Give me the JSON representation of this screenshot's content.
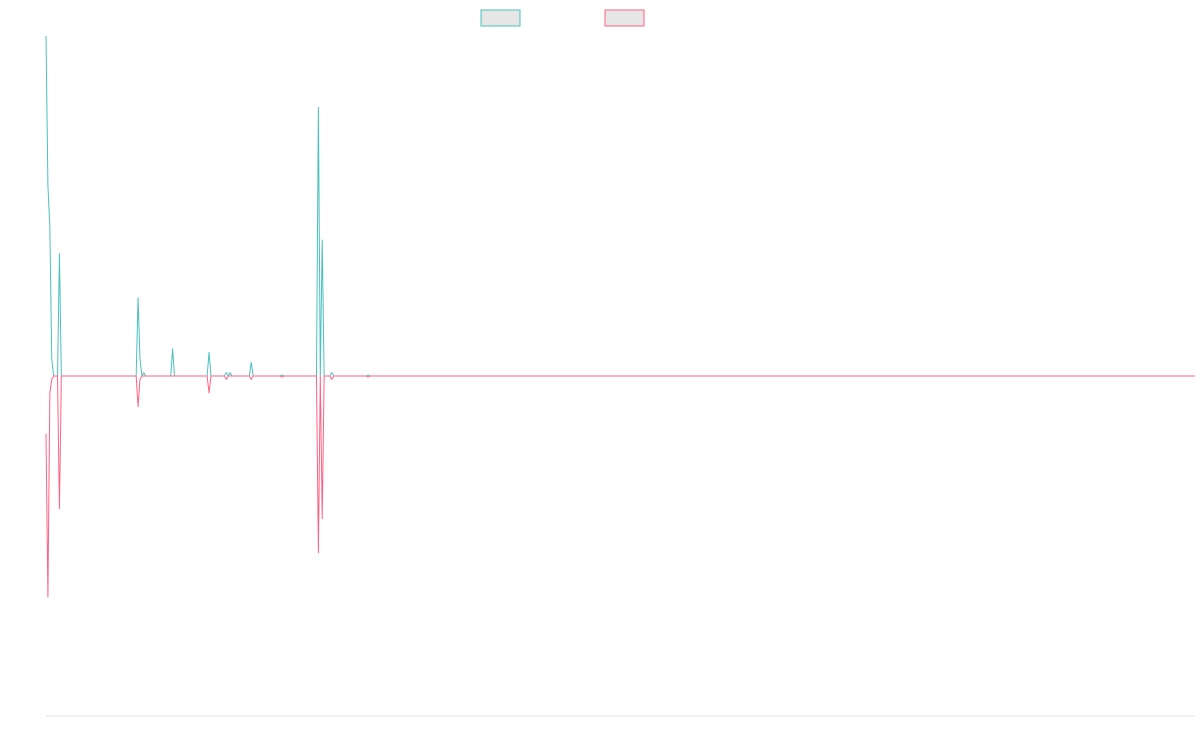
{
  "chart_data": {
    "type": "line",
    "title": "",
    "xlabel": "",
    "ylabel": "",
    "grid": false,
    "legend_position": "top-center",
    "x_count": 600,
    "ylim": [
      -100,
      100
    ],
    "colors": {
      "series_a": "#4bc0c0",
      "series_b": "#ff6384",
      "legend_fill": "#e6e6e6",
      "axis": "#e0e0e0"
    },
    "series": [
      {
        "name": "",
        "color": "#4bc0c0",
        "points": [
          [
            0,
            100
          ],
          [
            1,
            56
          ],
          [
            2,
            44
          ],
          [
            3,
            5
          ],
          [
            4,
            0
          ],
          [
            5,
            0
          ],
          [
            6,
            0
          ],
          [
            7,
            36
          ],
          [
            8,
            0
          ],
          [
            9,
            0
          ],
          [
            47,
            0
          ],
          [
            48,
            23
          ],
          [
            49,
            5
          ],
          [
            50,
            0
          ],
          [
            51,
            1
          ],
          [
            52,
            0
          ],
          [
            65,
            0
          ],
          [
            66,
            8
          ],
          [
            67,
            0
          ],
          [
            84,
            0
          ],
          [
            85,
            7
          ],
          [
            86,
            0
          ],
          [
            93,
            0
          ],
          [
            94,
            1
          ],
          [
            95,
            0
          ],
          [
            96,
            1
          ],
          [
            97,
            0
          ],
          [
            106,
            0
          ],
          [
            107,
            4
          ],
          [
            108,
            0
          ],
          [
            122,
            0
          ],
          [
            123,
            0.3
          ],
          [
            124,
            0
          ],
          [
            141,
            0
          ],
          [
            142,
            79
          ],
          [
            143,
            0
          ],
          [
            144,
            40
          ],
          [
            145,
            0
          ],
          [
            148,
            0
          ],
          [
            149,
            1
          ],
          [
            150,
            0
          ],
          [
            167,
            0
          ],
          [
            168,
            0.3
          ],
          [
            169,
            0
          ],
          [
            599,
            0
          ]
        ]
      },
      {
        "name": "",
        "color": "#ff6384",
        "points": [
          [
            0,
            -17
          ],
          [
            1,
            -65
          ],
          [
            2,
            -5
          ],
          [
            3,
            -1
          ],
          [
            4,
            0
          ],
          [
            5,
            0
          ],
          [
            6,
            0
          ],
          [
            7,
            -39
          ],
          [
            8,
            0
          ],
          [
            9,
            0
          ],
          [
            47,
            0
          ],
          [
            48,
            -9
          ],
          [
            49,
            -1
          ],
          [
            50,
            0
          ],
          [
            51,
            0
          ],
          [
            84,
            0
          ],
          [
            85,
            -5
          ],
          [
            86,
            0
          ],
          [
            93,
            0
          ],
          [
            94,
            -1
          ],
          [
            95,
            0
          ],
          [
            106,
            0
          ],
          [
            107,
            -1
          ],
          [
            108,
            0
          ],
          [
            122,
            0
          ],
          [
            123,
            -0.3
          ],
          [
            124,
            0
          ],
          [
            141,
            0
          ],
          [
            142,
            -52
          ],
          [
            143,
            0
          ],
          [
            144,
            -42
          ],
          [
            145,
            0
          ],
          [
            148,
            0
          ],
          [
            149,
            -1
          ],
          [
            150,
            0
          ],
          [
            167,
            0
          ],
          [
            168,
            -0.3
          ],
          [
            169,
            0
          ],
          [
            599,
            0
          ]
        ]
      }
    ]
  }
}
